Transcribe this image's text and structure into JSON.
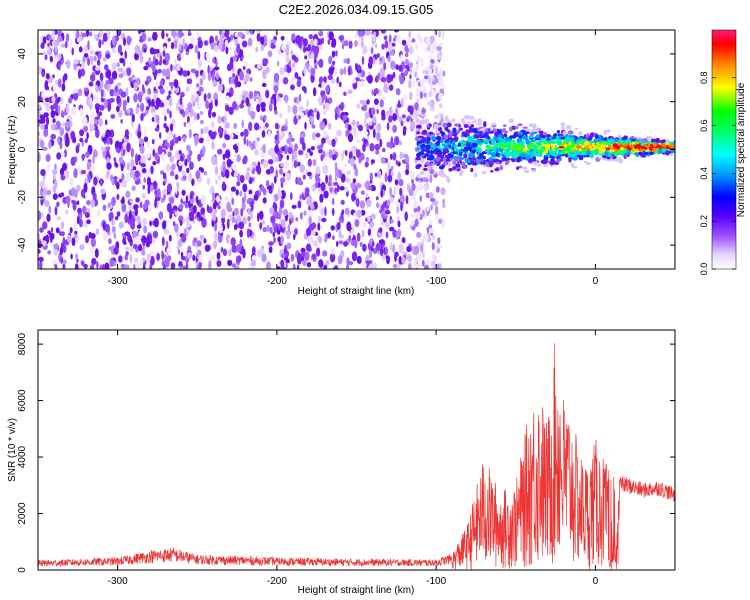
{
  "title": "C2E2.2026.034.09.15.G05",
  "chart_data": [
    {
      "type": "heatmap",
      "name": "spectrogram",
      "xlabel": "Height of straight line (km)",
      "ylabel": "Frequency (Hz)",
      "xlim": [
        -350,
        50
      ],
      "ylim": [
        -50,
        50
      ],
      "xticks": [
        -300,
        -200,
        -100,
        0
      ],
      "yticks": [
        -40,
        -20,
        0,
        20,
        40
      ],
      "noise_region_x": [
        -350,
        -95
      ],
      "signal_region_x": [
        -112,
        50
      ],
      "signal_center_freq_hz": 1,
      "colorbar": {
        "label": "Normalized spectral amplitude",
        "range": [
          0,
          1
        ],
        "ticks": [
          0.0,
          0.2,
          0.4,
          0.6,
          0.8
        ],
        "colormap": [
          "#ffffff",
          "#e0ccff",
          "#8a2be2",
          "#6a00ff",
          "#0000ff",
          "#00bfff",
          "#00ffff",
          "#00ff80",
          "#00ff00",
          "#ffff00",
          "#ff8000",
          "#ff0000",
          "#ff0066"
        ]
      }
    },
    {
      "type": "line",
      "name": "snr",
      "xlabel": "Height of straight line (km)",
      "ylabel": "SNR (10 * v/v)",
      "xlim": [
        -350,
        50
      ],
      "ylim": [
        0,
        8500
      ],
      "xticks": [
        -300,
        -200,
        -100,
        0
      ],
      "yticks": [
        0,
        2000,
        4000,
        6000,
        8000
      ],
      "color": "#ee3333",
      "envelope": {
        "x": [
          -350,
          -300,
          -280,
          -265,
          -250,
          -200,
          -150,
          -100,
          -90,
          -80,
          -70,
          -60,
          -50,
          -40,
          -35,
          -30,
          -25,
          -20,
          -15,
          -10,
          -5,
          0,
          10,
          20,
          30,
          40,
          50
        ],
        "y": [
          350,
          450,
          700,
          800,
          550,
          450,
          400,
          380,
          600,
          1700,
          4100,
          2800,
          3100,
          6100,
          6500,
          5200,
          8400,
          6300,
          5600,
          4200,
          3800,
          4700,
          3400,
          3300,
          3100,
          3200,
          2900
        ]
      }
    }
  ]
}
